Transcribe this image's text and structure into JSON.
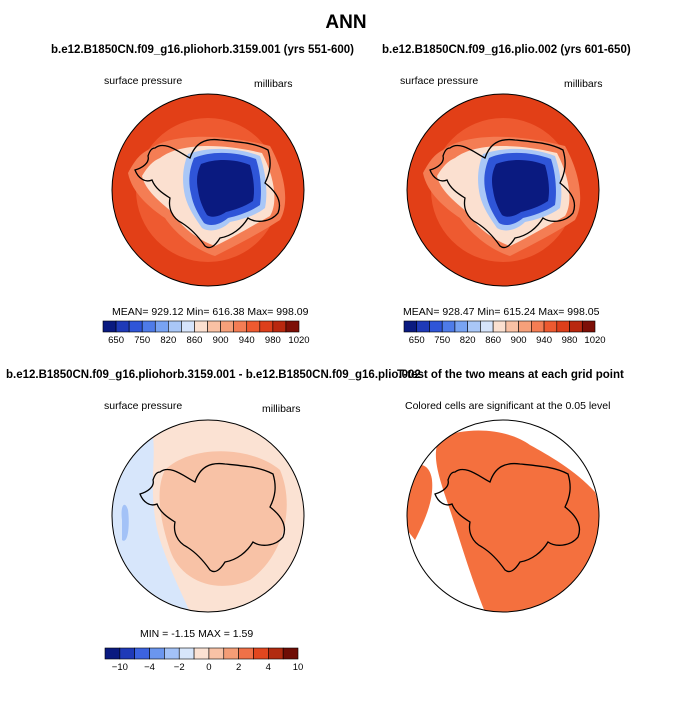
{
  "title": "ANN",
  "panels": {
    "tl": {
      "title": "b.e12.B1850CN.f09_g16.pliohorb.3159.001 (yrs 551-600)",
      "left_label": "surface pressure",
      "right_label": "millibars",
      "stats": "MEAN= 929.12   Min= 616.38   Max= 998.09"
    },
    "tr": {
      "title": "b.e12.B1850CN.f09_g16.plio.002 (yrs 601-650)",
      "left_label": "surface pressure",
      "right_label": "millibars",
      "stats": "MEAN= 928.47   Min= 615.24   Max= 998.05"
    },
    "bl": {
      "title": "b.e12.B1850CN.f09_g16.pliohorb.3159.001 - b.e12.B1850CN.f09_g16.plio.002",
      "left_label": "surface pressure",
      "right_label": "millibars",
      "stats": "MIN =   -1.15  MAX =     1.59"
    },
    "br": {
      "title": "T-test of the two means at each grid point",
      "subtitle": "Colored cells are significant at the 0.05 level"
    }
  },
  "chart_data": [
    {
      "type": "heatmap",
      "panel": "tl",
      "title": "b.e12.B1850CN.f09_g16.pliohorb.3159.001 (yrs 551-600)",
      "variable": "surface pressure",
      "units": "millibars",
      "projection": "south polar stereographic",
      "mean": 929.12,
      "min": 616.38,
      "max": 998.09,
      "colorbar_levels": [
        650,
        700,
        750,
        780,
        820,
        840,
        860,
        880,
        900,
        920,
        940,
        960,
        980,
        1000,
        1020
      ],
      "colorbar_tick_labels": [
        "650",
        "750",
        "820",
        "860",
        "900",
        "940",
        "980",
        "1020"
      ]
    },
    {
      "type": "heatmap",
      "panel": "tr",
      "title": "b.e12.B1850CN.f09_g16.plio.002 (yrs 601-650)",
      "variable": "surface pressure",
      "units": "millibars",
      "projection": "south polar stereographic",
      "mean": 928.47,
      "min": 615.24,
      "max": 998.05,
      "colorbar_levels": [
        650,
        700,
        750,
        780,
        820,
        840,
        860,
        880,
        900,
        920,
        940,
        960,
        980,
        1000,
        1020
      ],
      "colorbar_tick_labels": [
        "650",
        "750",
        "820",
        "860",
        "900",
        "940",
        "980",
        "1020"
      ]
    },
    {
      "type": "heatmap",
      "panel": "bl",
      "title": "b.e12.B1850CN.f09_g16.pliohorb.3159.001 - b.e12.B1850CN.f09_g16.plio.002",
      "variable": "surface pressure",
      "units": "millibars",
      "projection": "south polar stereographic",
      "min": -1.15,
      "max": 1.59,
      "colorbar_levels": [
        -10,
        -8,
        -4,
        -3,
        -2,
        -1,
        0,
        1,
        2,
        3,
        4,
        8,
        10
      ],
      "colorbar_tick_labels": [
        "-10",
        "-4",
        "-2",
        "0",
        "2",
        "4",
        "10"
      ]
    },
    {
      "type": "heatmap",
      "panel": "br",
      "title": "T-test of the two means at each grid point",
      "subtitle": "Colored cells are significant at the 0.05 level",
      "significance_level": 0.05,
      "significant_color": "#f4703e"
    }
  ],
  "colors": {
    "abs_palette": [
      "#0a1a80",
      "#1f3ab8",
      "#2f55d8",
      "#4e7be8",
      "#78a3f2",
      "#a9c7f7",
      "#d6e4fb",
      "#fbe0d0",
      "#f9c1a4",
      "#f6a07a",
      "#f47d54",
      "#ee5a30",
      "#dd3f1b",
      "#b9280f",
      "#7d0f07"
    ],
    "diff_palette": [
      "#0a1a80",
      "#1f3ab8",
      "#3c63e0",
      "#6b96ee",
      "#a3c2f7",
      "#d7e6fb",
      "#fbe2d3",
      "#f8c2a6",
      "#f49d76",
      "#f07148",
      "#e2471f",
      "#b22b10",
      "#6f0d05"
    ],
    "background_map": "#e23f17",
    "significant": "#f4703e"
  }
}
